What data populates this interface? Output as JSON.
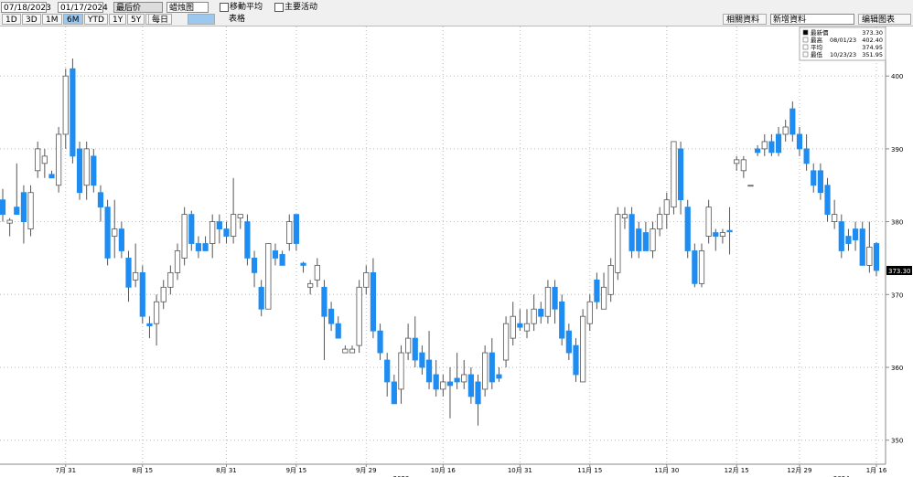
{
  "chart_data": {
    "type": "candlestick",
    "toolbar": {
      "start_date": "07/18/2023",
      "end_date": "01/17/2024",
      "price_field": "最后价",
      "chart_style": "蜡烛图",
      "moving_average": "移動平均",
      "key_events": "主要活动",
      "ranges": [
        "1D",
        "3D",
        "1M",
        "6M",
        "YTD",
        "1Y",
        "5Y",
        "最大"
      ],
      "active_range": 3,
      "frequency": "每日",
      "table": "表格",
      "related": "相關資料",
      "add_data": "新增資料",
      "edit": "编辑图表"
    },
    "info_box": [
      {
        "label": "最新價",
        "value": "373.30"
      },
      {
        "label": "最高",
        "date": "08/01/23",
        "value": "402.40"
      },
      {
        "label": "平均",
        "value": "374.95"
      },
      {
        "label": "最低",
        "date": "10/23/23",
        "value": "351.95"
      }
    ],
    "last_price_label": "373.30",
    "up_color": "#ffffff",
    "down_color": "#1e8cf0",
    "wick_color": "#555555",
    "ylim": [
      346.7,
      406.8
    ],
    "yticks": [
      350,
      360,
      370,
      380,
      390,
      400
    ],
    "grid": true,
    "categories": [
      null,
      null,
      null,
      null,
      null,
      null,
      null,
      null,
      null,
      "7月 31",
      null,
      null,
      null,
      null,
      null,
      null,
      null,
      null,
      null,
      null,
      "8月 15",
      null,
      null,
      null,
      null,
      null,
      null,
      null,
      null,
      null,
      null,
      null,
      "8月 31",
      null,
      null,
      null,
      null,
      null,
      null,
      null,
      null,
      null,
      "9月 15",
      null,
      null,
      null,
      null,
      null,
      null,
      null,
      null,
      null,
      "9月 29",
      null,
      null,
      null,
      null,
      null,
      null,
      null,
      null,
      null,
      null,
      "10月 16",
      null,
      null,
      null,
      null,
      null,
      null,
      null,
      null,
      null,
      null,
      "10月 31",
      null,
      null,
      null,
      null,
      null,
      null,
      null,
      null,
      null,
      "11月 15",
      null,
      null,
      null,
      null,
      null,
      null,
      null,
      null,
      null,
      null,
      "11月 30",
      null,
      null,
      null,
      null,
      null,
      null,
      null,
      null,
      null,
      "12月 15",
      null,
      null,
      null,
      null,
      null,
      null,
      null,
      null,
      "12月 29",
      null,
      null,
      null,
      null,
      null,
      null,
      null,
      null,
      null,
      null,
      "1月 16"
    ],
    "category_years": [
      null,
      null,
      null,
      null,
      null,
      null,
      null,
      null,
      null,
      null,
      null,
      null,
      null,
      null,
      null,
      null,
      null,
      null,
      null,
      null,
      null,
      null,
      null,
      null,
      null,
      null,
      null,
      null,
      null,
      null,
      null,
      null,
      null,
      null,
      null,
      null,
      null,
      null,
      null,
      null,
      null,
      null,
      null,
      null,
      null,
      null,
      null,
      null,
      null,
      null,
      null,
      null,
      null,
      null,
      null,
      null,
      null,
      "2023",
      null,
      null,
      null,
      null,
      null,
      null,
      null,
      null,
      null,
      null,
      null,
      null,
      null,
      null,
      null,
      null,
      null,
      null,
      null,
      null,
      null,
      null,
      null,
      null,
      null,
      null,
      null,
      null,
      null,
      null,
      null,
      null,
      null,
      null,
      null,
      null,
      null,
      null,
      null,
      null,
      null,
      null,
      null,
      null,
      null,
      null,
      null,
      null,
      null,
      null,
      null,
      null,
      null,
      null,
      null,
      null,
      null,
      null,
      null,
      null,
      null,
      null,
      "2024",
      null,
      null,
      null,
      null,
      null
    ],
    "ohlc": [
      [
        383,
        384.5,
        380,
        381
      ],
      [
        379.8,
        380.5,
        378,
        380.2
      ],
      [
        382,
        388,
        381,
        381
      ],
      [
        384,
        385,
        377,
        380
      ],
      [
        379,
        385,
        378,
        384
      ],
      [
        387,
        391,
        386,
        390
      ],
      [
        388,
        390,
        386,
        389
      ],
      [
        386.5,
        387,
        386,
        386
      ],
      [
        385,
        393,
        384,
        392
      ],
      [
        392,
        401,
        390,
        400
      ],
      [
        401,
        402.4,
        388,
        389
      ],
      [
        390,
        391,
        383,
        384
      ],
      [
        385,
        391,
        383,
        390
      ],
      [
        389,
        390,
        384,
        385
      ],
      [
        384,
        385,
        380,
        382
      ],
      [
        382,
        383,
        374,
        375
      ],
      [
        378,
        383,
        375,
        379
      ],
      [
        379,
        380,
        375,
        376
      ],
      [
        375,
        376,
        369,
        371
      ],
      [
        372,
        377,
        371,
        373
      ],
      [
        373,
        374,
        366,
        367
      ],
      [
        366,
        367,
        364,
        365.7
      ],
      [
        366,
        370,
        363,
        369
      ],
      [
        369,
        372,
        368,
        371
      ],
      [
        371,
        374,
        370,
        373
      ],
      [
        373,
        377,
        372,
        376
      ],
      [
        375,
        382,
        374,
        381
      ],
      [
        381,
        381.5,
        376,
        377
      ],
      [
        377,
        378,
        375,
        376
      ],
      [
        377,
        378,
        376,
        376
      ],
      [
        377,
        381,
        375,
        380
      ],
      [
        380,
        381,
        377,
        379
      ],
      [
        379,
        380,
        377,
        378
      ],
      [
        378,
        386,
        377,
        381
      ],
      [
        380.5,
        381,
        379,
        381
      ],
      [
        380,
        381,
        374,
        375
      ],
      [
        375,
        376,
        371,
        373
      ],
      [
        371,
        372,
        367,
        368
      ],
      [
        368,
        377,
        368,
        377
      ],
      [
        376,
        377,
        374,
        375
      ],
      [
        375.5,
        376,
        374,
        374
      ],
      [
        377,
        381,
        376,
        380
      ],
      [
        381,
        381,
        376,
        377
      ],
      [
        374.3,
        374.5,
        373,
        374
      ],
      [
        371,
        372,
        370,
        371.5
      ],
      [
        372,
        375,
        371,
        374
      ],
      [
        371,
        372,
        361,
        367
      ],
      [
        368,
        369,
        365,
        366
      ],
      [
        366,
        367,
        364,
        364
      ],
      [
        362,
        363,
        362,
        362.5
      ],
      [
        362,
        363,
        362,
        362.5
      ],
      [
        363,
        372,
        362,
        371
      ],
      [
        371,
        374,
        370,
        373
      ],
      [
        373,
        375,
        364,
        365
      ],
      [
        365,
        366,
        361,
        362
      ],
      [
        361,
        362,
        356,
        358
      ],
      [
        358,
        359,
        355,
        355
      ],
      [
        357,
        363,
        355,
        362
      ],
      [
        362,
        366,
        361,
        364
      ],
      [
        364,
        367,
        360,
        361
      ],
      [
        362,
        363,
        359,
        360
      ],
      [
        361,
        365,
        357,
        358
      ],
      [
        359,
        361,
        356,
        357
      ],
      [
        357,
        359,
        356,
        358
      ],
      [
        358,
        360,
        353,
        357.5
      ],
      [
        358.5,
        362,
        357,
        358
      ],
      [
        358,
        361,
        357,
        359
      ],
      [
        359,
        360,
        355,
        356
      ],
      [
        358,
        359,
        352,
        355
      ],
      [
        357,
        363,
        356,
        362
      ],
      [
        362,
        364,
        357,
        358
      ],
      [
        359,
        360,
        358,
        358.5
      ],
      [
        361,
        367,
        360,
        366
      ],
      [
        364,
        369,
        363,
        367
      ],
      [
        366,
        368,
        365,
        365.5
      ],
      [
        365,
        368,
        364,
        366
      ],
      [
        366,
        370,
        365,
        368
      ],
      [
        368,
        369,
        366,
        367
      ],
      [
        367,
        372,
        366,
        371
      ],
      [
        371,
        372,
        366,
        368
      ],
      [
        369,
        370,
        363,
        364
      ],
      [
        365,
        366,
        361,
        362
      ],
      [
        363,
        364,
        358,
        359
      ],
      [
        358,
        368,
        358,
        367
      ],
      [
        366,
        370,
        365,
        369
      ],
      [
        372,
        373,
        368,
        369
      ],
      [
        368,
        373,
        368,
        371
      ],
      [
        370,
        375,
        369,
        374
      ],
      [
        373,
        382,
        372,
        381
      ],
      [
        380.5,
        382,
        379,
        381
      ],
      [
        381,
        382,
        375,
        376
      ],
      [
        379,
        380,
        375,
        376
      ],
      [
        378.5,
        380,
        376,
        376
      ],
      [
        376,
        380,
        375,
        379
      ],
      [
        379,
        382,
        378,
        381
      ],
      [
        381,
        384,
        379,
        383
      ],
      [
        382,
        391,
        381,
        391
      ],
      [
        390,
        391,
        381,
        383
      ],
      [
        382,
        383,
        375,
        376
      ],
      [
        376,
        377,
        371,
        371.5
      ],
      [
        371.5,
        377,
        371,
        376
      ],
      [
        378,
        383,
        377,
        382
      ],
      [
        378.5,
        379,
        376,
        378
      ],
      [
        378,
        379,
        377,
        378.5
      ],
      [
        378.8,
        382,
        375.5,
        378.6
      ],
      [
        388,
        389,
        387,
        388.5
      ],
      [
        387,
        389,
        386,
        388.5
      ],
      [
        385,
        385,
        385,
        385
      ],
      [
        390,
        390.5,
        389,
        389.5
      ],
      [
        390,
        392,
        389,
        391
      ],
      [
        391,
        392,
        389,
        389.5
      ],
      [
        392,
        393,
        389,
        389.5
      ],
      [
        392,
        394,
        391,
        393
      ],
      [
        395.5,
        396.5,
        391,
        392
      ],
      [
        392,
        393,
        389,
        390
      ],
      [
        390,
        392,
        387,
        388
      ],
      [
        387,
        388,
        384,
        385
      ],
      [
        387,
        388,
        383,
        384
      ],
      [
        385,
        386,
        380,
        381
      ],
      [
        380,
        383,
        379,
        381
      ],
      [
        380,
        381,
        375,
        376
      ],
      [
        378,
        379,
        376,
        377
      ],
      [
        379,
        380,
        376,
        377.5
      ],
      [
        379,
        380,
        374,
        374
      ],
      [
        374,
        380,
        373,
        376.5
      ],
      [
        377,
        377.2,
        372.5,
        373.3
      ]
    ]
  }
}
